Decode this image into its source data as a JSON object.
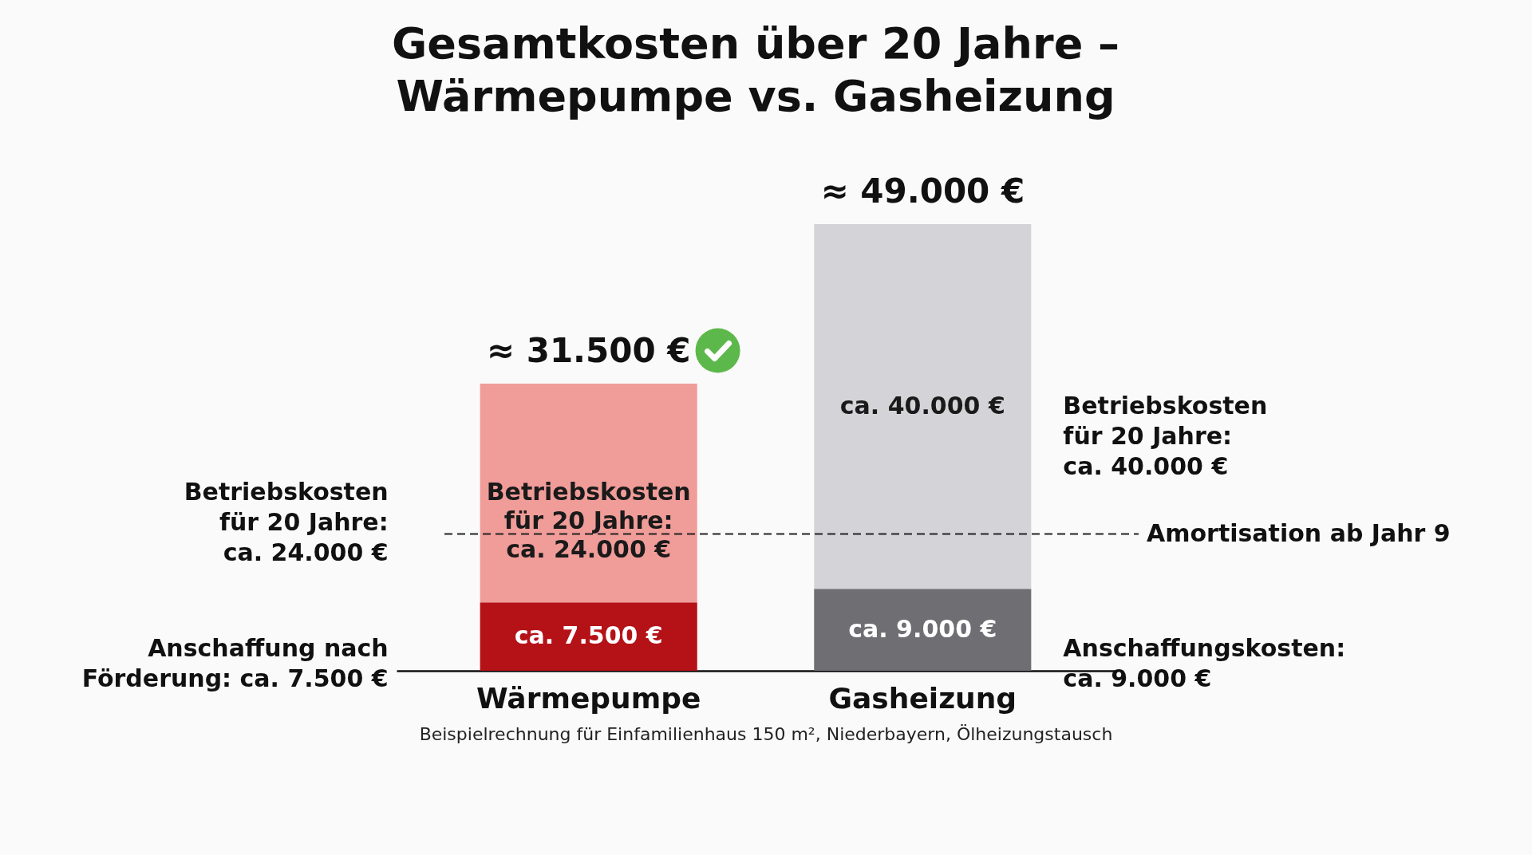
{
  "chart_data": {
    "type": "bar",
    "title": "Gesamtkosten über 20 Jahre –\nWärmepumpe vs. Gasheizung",
    "stacked": true,
    "categories": [
      "Wärmepumpe",
      "Gasheizung"
    ],
    "series": [
      {
        "colors": [
          "#b51218",
          "#6e6e73"
        ],
        "values": [
          7500,
          9000
        ],
        "value_labels": [
          "ca. 7.500 €",
          "ca. 9.000 €"
        ]
      },
      {
        "colors": [
          "#f09c98",
          "#d4d4d8"
        ],
        "values": [
          24000,
          40000
        ],
        "value_labels": [
          "Betriebskosten\nfür 20 Jahre:\nca. 24.000 €",
          "ca. 40.000 €"
        ]
      }
    ],
    "totals": [
      "≈ 31.500 €",
      "≈ 49.000 €"
    ],
    "ref_lines": [
      {
        "axis": "y",
        "value": 15000,
        "label": "Amortisation ab Jahr 9",
        "line_style": "dashed",
        "color": "#222222"
      }
    ],
    "annotations": [
      "Betriebskosten\nfür 20 Jahre:\nca. 24.000 €",
      "Anschaffung nach\nFörderung: ca. 7.500 €",
      "Betriebskosten\nfür 20 Jahre:\nca. 40.000 €",
      "Anschaffungskosten:\nca. 9.000 €",
      "Beispielrechnung für Einfamilienhaus 150 m², Niederbayern, Ölheizungstausch"
    ]
  }
}
